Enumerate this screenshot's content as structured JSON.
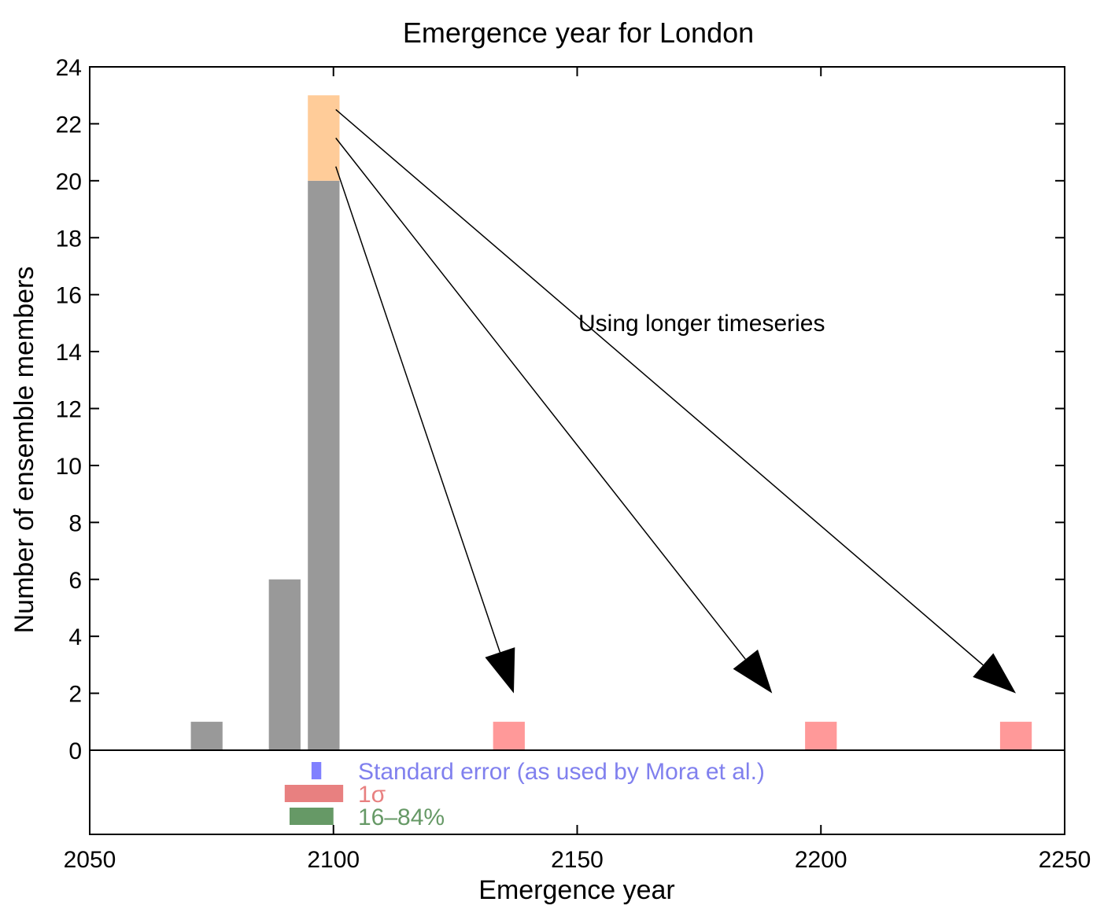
{
  "chart_data": {
    "type": "bar",
    "title": "Emergence year for London",
    "xlabel": "Emergence year",
    "ylabel": "Number of ensemble members",
    "xlim": [
      2050,
      2250
    ],
    "ylim": [
      0,
      24
    ],
    "x_ticks": [
      2050,
      2100,
      2150,
      2200,
      2250
    ],
    "y_ticks": [
      0,
      2,
      4,
      6,
      8,
      10,
      12,
      14,
      16,
      18,
      20,
      22,
      24
    ],
    "bin_width": 6.5,
    "series": [
      {
        "color": "#999999",
        "bars": [
          {
            "x": 2074,
            "value": 1
          },
          {
            "x": 2090,
            "value": 6
          },
          {
            "x": 2098,
            "value": 20
          }
        ]
      },
      {
        "color": "#ffcc99",
        "bars": [
          {
            "x": 2098,
            "value": 3,
            "base": 20
          }
        ]
      },
      {
        "color": "#ff9999",
        "bars": [
          {
            "x": 2136,
            "value": 1
          },
          {
            "x": 2200,
            "value": 1
          },
          {
            "x": 2240,
            "value": 1
          }
        ]
      }
    ],
    "arrows": [
      {
        "from": [
          2100,
          20.5
        ],
        "to": [
          2137,
          2
        ]
      },
      {
        "from": [
          2100,
          21.5
        ],
        "to": [
          2190,
          2
        ]
      },
      {
        "from": [
          2100,
          22.5
        ],
        "to": [
          2240,
          2
        ]
      }
    ],
    "annotation": {
      "text": "Using longer timeseries",
      "x": 2150,
      "y": 15
    },
    "uncertainty_legend": [
      {
        "label": "Standard error (as used by Mora et al.)",
        "color": "#8080ff",
        "text_color": "#8080ee",
        "xmin": 2095.5,
        "xmax": 2097.5
      },
      {
        "label": "1σ",
        "color": "#e88080",
        "text_color": "#e88080",
        "xmin": 2090,
        "xmax": 2102
      },
      {
        "label": "16–84%",
        "color": "#669966",
        "text_color": "#669966",
        "xmin": 2091,
        "xmax": 2100
      }
    ],
    "grid": false,
    "legend": "below x-axis"
  }
}
